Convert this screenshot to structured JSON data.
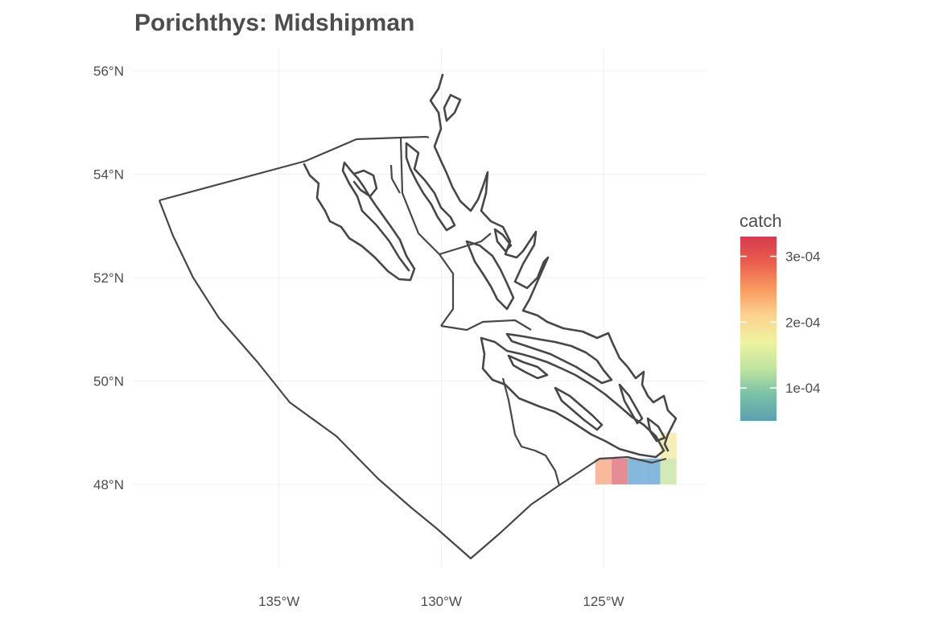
{
  "title": "Porichthys: Midshipman",
  "axes": {
    "x_ticks": [
      {
        "value": -135,
        "label": "135°W"
      },
      {
        "value": -130,
        "label": "130°W"
      },
      {
        "value": -125,
        "label": "125°W"
      }
    ],
    "y_ticks": [
      {
        "value": 56,
        "label": "56°N"
      },
      {
        "value": 54,
        "label": "54°N"
      },
      {
        "value": 52,
        "label": "52°N"
      },
      {
        "value": 50,
        "label": "50°N"
      },
      {
        "value": 48,
        "label": "48°N"
      }
    ],
    "grid": true
  },
  "legend": {
    "title": "catch",
    "placement": "right",
    "min": 5e-05,
    "max": 0.00033,
    "ticks": [
      {
        "value": 0.0003,
        "label": "3e-04"
      },
      {
        "value": 0.0002,
        "label": "2e-04"
      },
      {
        "value": 0.0001,
        "label": "1e-04"
      }
    ],
    "palette": [
      "#5e9fb2",
      "#79c1a5",
      "#c0e5a0",
      "#eef29f",
      "#fbd38f",
      "#f99a60",
      "#ea5f4f",
      "#d63a4d"
    ]
  },
  "catch_cells": [
    {
      "lon": -125.0,
      "lat": 48.25,
      "catch": 0.00022,
      "color": "#f9b99c"
    },
    {
      "lon": -124.5,
      "lat": 48.25,
      "catch": 0.00032,
      "color": "#e68c94"
    },
    {
      "lon": -124.0,
      "lat": 48.25,
      "catch": 5e-05,
      "color": "#84b8dc"
    },
    {
      "lon": -123.5,
      "lat": 48.25,
      "catch": 5e-05,
      "color": "#84b8dc"
    },
    {
      "lon": -123.0,
      "lat": 48.25,
      "catch": 0.00011,
      "color": "#d4eab6"
    },
    {
      "lon": -123.0,
      "lat": 48.75,
      "catch": 0.00019,
      "color": "#f5eeb6"
    }
  ]
}
